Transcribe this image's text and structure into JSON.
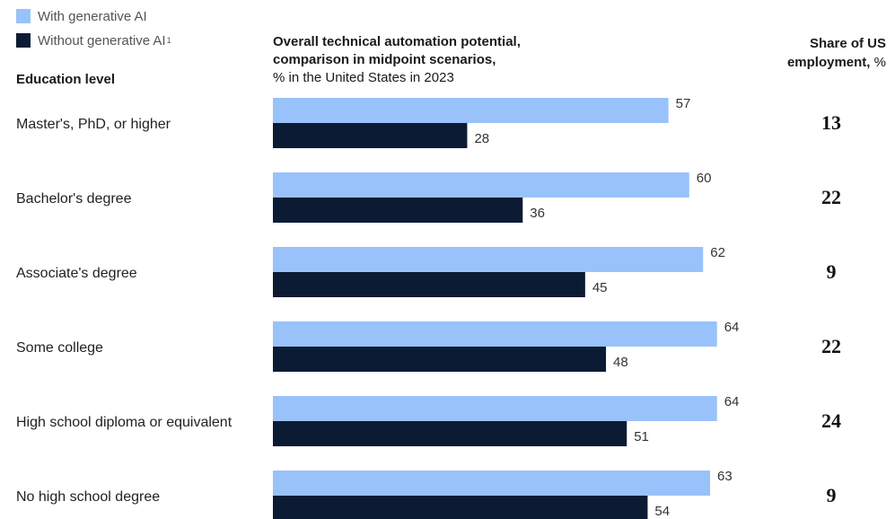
{
  "legend": {
    "with_label": "With generative AI",
    "without_label": "Without generative AI",
    "without_footnote": "1"
  },
  "headers": {
    "education": "Education level",
    "chart_title_line1": "Overall technical automation potential,",
    "chart_title_line2": "comparison in midpoint scenarios,",
    "chart_subtitle": "% in the United States in 2023",
    "share_line1": "Share of US",
    "share_line2_bold": "employment,",
    "share_line2_unit": " %"
  },
  "colors": {
    "with_ai": "#99c2fb",
    "without_ai": "#0b1b33"
  },
  "chart_data": {
    "type": "bar",
    "orientation": "horizontal",
    "categories": [
      "Master's, PhD, or higher",
      "Bachelor's degree",
      "Associate's degree",
      "Some college",
      "High school diploma or equivalent",
      "No high school degree"
    ],
    "series": [
      {
        "name": "With generative AI",
        "values": [
          57,
          60,
          62,
          64,
          64,
          63
        ]
      },
      {
        "name": "Without generative AI",
        "values": [
          28,
          36,
          45,
          48,
          51,
          54
        ]
      }
    ],
    "share_of_us_employment": [
      13,
      22,
      9,
      22,
      24,
      9
    ],
    "xlim": [
      0,
      100
    ],
    "legend_position": "top-left",
    "grid": false
  }
}
